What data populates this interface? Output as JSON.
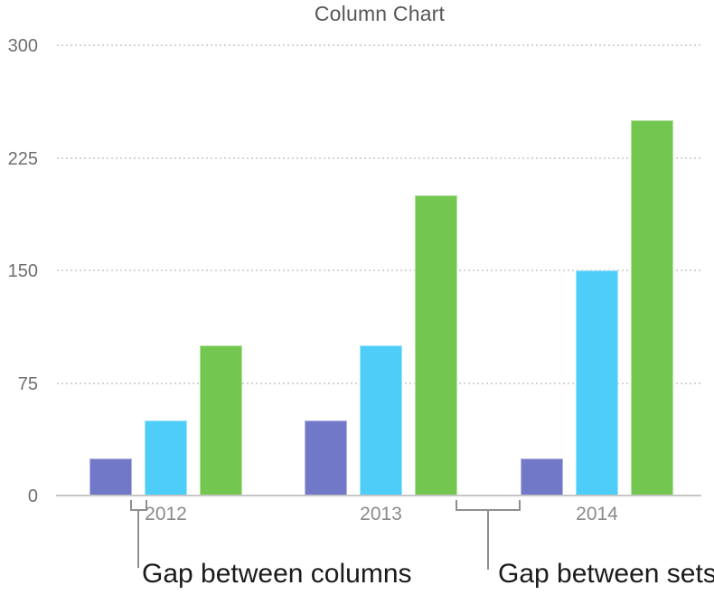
{
  "chart_data": {
    "type": "bar",
    "title": "Column Chart",
    "categories": [
      "2012",
      "2013",
      "2014"
    ],
    "series": [
      {
        "name": "purple",
        "color": "#7278C8",
        "values": [
          25,
          50,
          25
        ]
      },
      {
        "name": "blue",
        "color": "#4ECDF9",
        "values": [
          50,
          100,
          150
        ]
      },
      {
        "name": "green",
        "color": "#73C750",
        "values": [
          100,
          200,
          250
        ]
      }
    ],
    "xlabel": "",
    "ylabel": "",
    "ylim": [
      0,
      300
    ],
    "yticks": [
      0,
      75,
      150,
      225,
      300
    ],
    "grid": "horizontal-dotted",
    "legend": "none"
  },
  "annotations": {
    "gap_between_columns": "Gap between columns",
    "gap_between_sets": "Gap between sets"
  }
}
